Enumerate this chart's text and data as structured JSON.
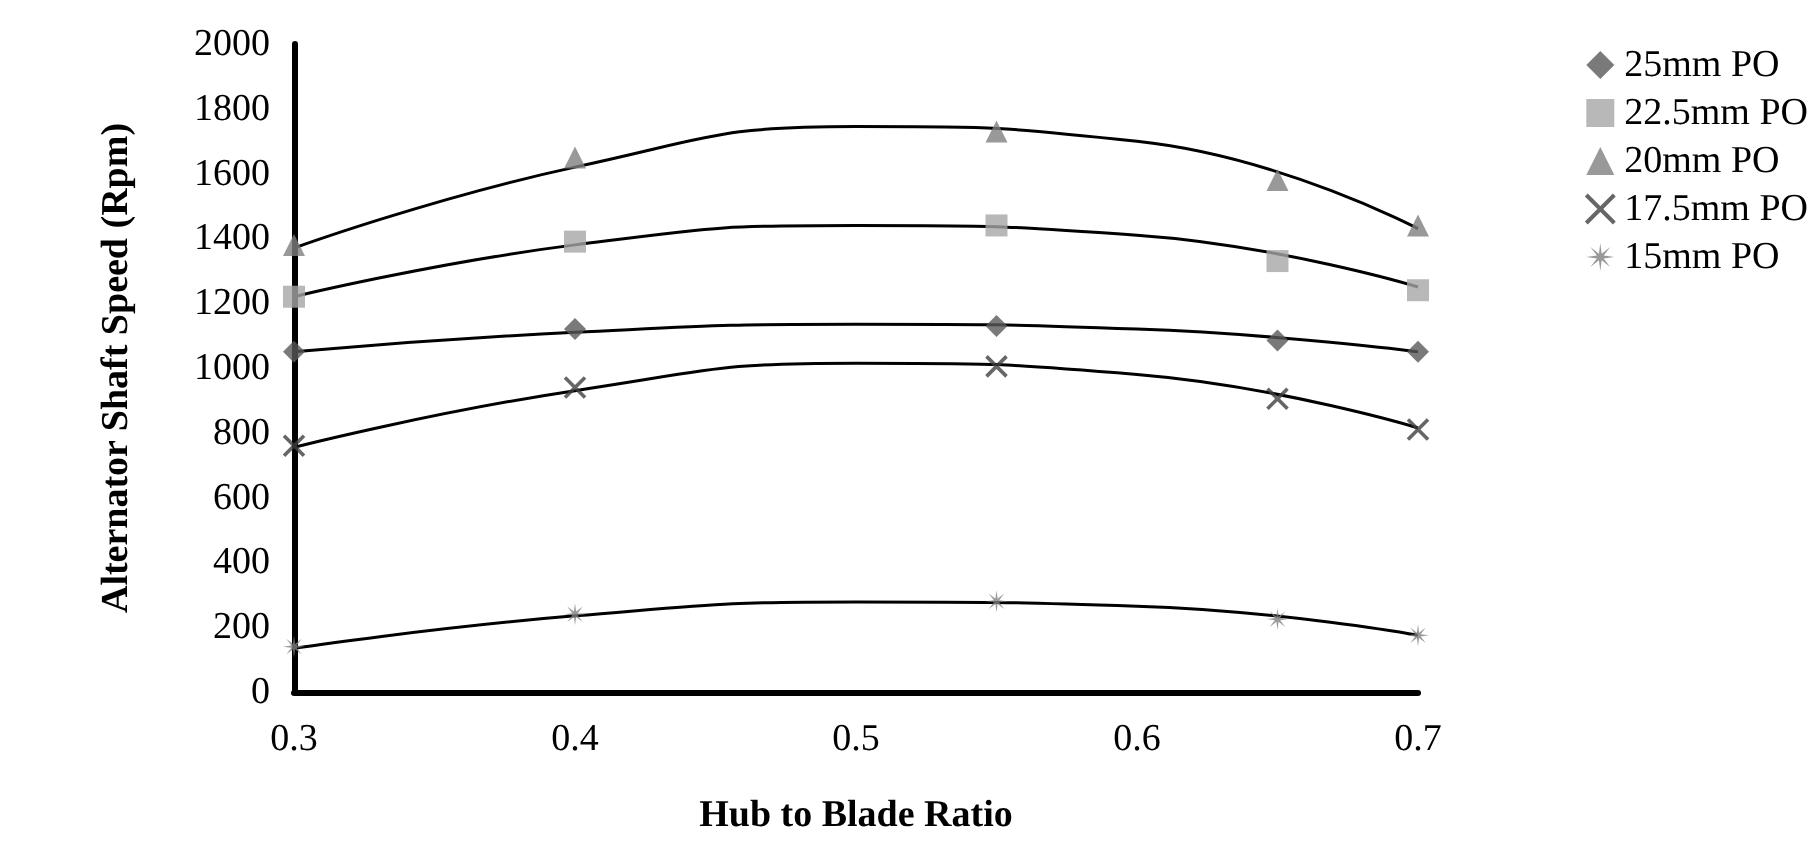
{
  "chart_data": {
    "type": "scatter",
    "xlabel": "Hub to Blade Ratio",
    "ylabel": "Alternator Shaft Speed (Rpm)",
    "x": [
      0.3,
      0.4,
      0.55,
      0.65,
      0.7
    ],
    "xlim": [
      0.3,
      0.7
    ],
    "xticks": [
      0.3,
      0.4,
      0.5,
      0.6,
      0.7
    ],
    "ylim": [
      0,
      2000
    ],
    "yticks": [
      0,
      200,
      400,
      600,
      800,
      1000,
      1200,
      1400,
      1600,
      1800,
      2000
    ],
    "grid": false,
    "legend": "right",
    "series": [
      {
        "name": "25mm PO",
        "color": "#595959",
        "marker": "diamond",
        "values": [
          1050,
          1120,
          1130,
          1085,
          1050
        ]
      },
      {
        "name": "22.5mm PO",
        "color": "#a6a6a6",
        "marker": "square",
        "values": [
          1220,
          1390,
          1440,
          1330,
          1240
        ]
      },
      {
        "name": "20mm PO",
        "color": "#7f7f7f",
        "marker": "triangle",
        "values": [
          1380,
          1650,
          1730,
          1580,
          1440
        ]
      },
      {
        "name": "17.5mm PO",
        "color": "#404040",
        "marker": "cross",
        "values": [
          760,
          940,
          1005,
          905,
          810
        ]
      },
      {
        "name": "15mm PO",
        "color": "#808080",
        "marker": "star",
        "values": [
          140,
          240,
          280,
          225,
          175
        ]
      },
      {
        "type": "line",
        "color": "#000000",
        "marker": "none",
        "x": [
          0.3,
          0.4,
          0.5,
          0.6,
          0.7
        ],
        "values": [
          1050,
          1110,
          1135,
          1120,
          1050
        ]
      },
      {
        "type": "line",
        "color": "#000000",
        "marker": "none",
        "x": [
          0.3,
          0.4,
          0.5,
          0.6,
          0.7
        ],
        "values": [
          1220,
          1380,
          1440,
          1410,
          1250
        ]
      },
      {
        "type": "line",
        "color": "#000000",
        "marker": "none",
        "x": [
          0.3,
          0.4,
          0.5,
          0.6,
          0.7
        ],
        "values": [
          1370,
          1620,
          1745,
          1700,
          1430
        ]
      },
      {
        "type": "line",
        "color": "#000000",
        "marker": "none",
        "x": [
          0.3,
          0.4,
          0.5,
          0.6,
          0.7
        ],
        "values": [
          755,
          930,
          1015,
          980,
          815
        ]
      },
      {
        "type": "line",
        "color": "#000000",
        "marker": "none",
        "x": [
          0.3,
          0.4,
          0.5,
          0.6,
          0.7
        ],
        "values": [
          135,
          235,
          278,
          265,
          175
        ]
      }
    ]
  }
}
